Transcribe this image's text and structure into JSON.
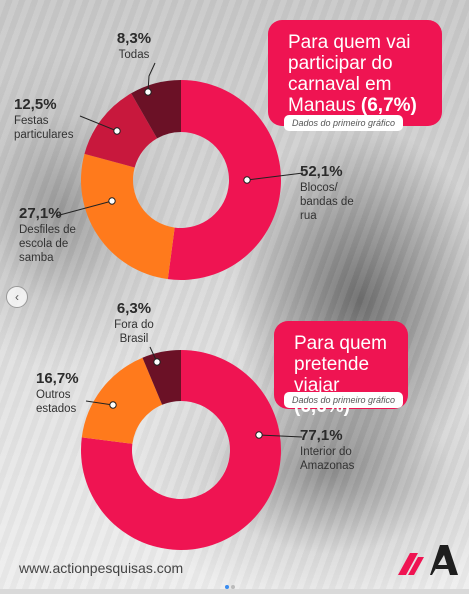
{
  "colors": {
    "accent": "#ef1452",
    "orange": "#ff7a1c",
    "crimson": "#c8183d",
    "dark": "#6b1126"
  },
  "chart_data": [
    {
      "type": "pie",
      "title": "Para quem vai participar do carnaval em Manaus (6,7%)",
      "subtitle": "Dados do primeiro gráfico",
      "labels": [
        "Blocos/ bandas de rua",
        "Desfiles de escola de samba",
        "Festas particulares",
        "Todas"
      ],
      "values": [
        52.1,
        27.1,
        12.5,
        8.3
      ],
      "value_labels": [
        "52,1%",
        "27,1%",
        "12,5%",
        "8,3%"
      ],
      "colors": [
        "#ef1452",
        "#ff7a1c",
        "#c8183d",
        "#6b1126"
      ]
    },
    {
      "type": "pie",
      "title": "Para quem pretende viajar (6,6%)",
      "subtitle": "Dados do primeiro gráfico",
      "labels": [
        "Interior do Amazonas",
        "Outros estados",
        "Fora do Brasil"
      ],
      "values": [
        77.1,
        16.7,
        6.3
      ],
      "value_labels": [
        "77,1%",
        "16,7%",
        "6,3%"
      ],
      "colors": [
        "#ef1452",
        "#ff7a1c",
        "#6b1126"
      ]
    }
  ],
  "callout1": {
    "text": "Para quem vai participar do carnaval em Manaus",
    "highlight": "(6,7%)",
    "source": "Dados do primeiro gráfico"
  },
  "callout2": {
    "text": "Para quem pretende viajar",
    "highlight": "(6,6%)",
    "source": "Dados do primeiro gráfico"
  },
  "labels1": {
    "blocos": {
      "pct": "52,1%",
      "text": "Blocos/ bandas de rua"
    },
    "desfiles": {
      "pct": "27,1%",
      "text": "Desfiles de escola de samba"
    },
    "festas": {
      "pct": "12,5%",
      "text": "Festas particulares"
    },
    "todas": {
      "pct": "8,3%",
      "text": "Todas"
    }
  },
  "labels2": {
    "interior": {
      "pct": "77,1%",
      "text": "Interior do Amazonas"
    },
    "outros": {
      "pct": "16,7%",
      "text": "Outros estados"
    },
    "fora": {
      "pct": "6,3%",
      "text": "Fora do Brasil"
    }
  },
  "footer": {
    "url": "www.actionpesquisas.com"
  },
  "logo": {
    "letter": "A"
  },
  "nav": {
    "prev_icon": "chevron-left-icon",
    "prev_glyph": "‹"
  }
}
